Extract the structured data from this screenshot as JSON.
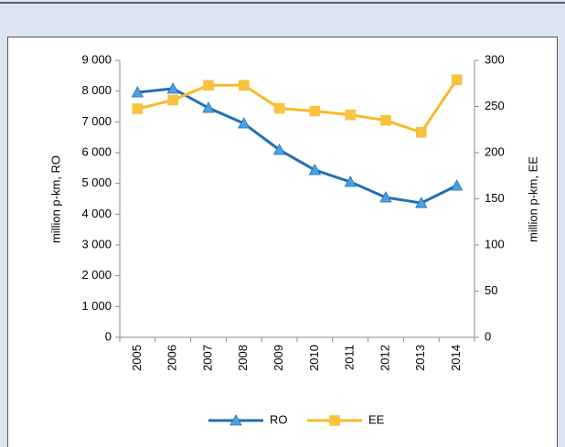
{
  "chart_data": {
    "type": "line",
    "categories": [
      "2005",
      "2006",
      "2007",
      "2008",
      "2009",
      "2010",
      "2011",
      "2012",
      "2013",
      "2014"
    ],
    "series": [
      {
        "name": "RO",
        "color": "#1f6fb5",
        "marker_color": "#4fa0de",
        "marker": "triangle",
        "values": [
          7960,
          8080,
          7455,
          6950,
          6090,
          5435,
          5050,
          4545,
          4365,
          4930
        ]
      },
      {
        "name": "EE",
        "color": "#f9b92a",
        "marker_color": "#f9c33f",
        "marker": "square",
        "axis": "y2",
        "values": [
          247.5,
          257,
          273,
          273,
          248,
          245,
          241,
          235,
          222,
          279
        ]
      }
    ],
    "ylabel": "million p-km, RO",
    "y2label": "million p-km, EE",
    "ylim": [
      0,
      9000
    ],
    "yticks": [
      0,
      {
        "value": 1000,
        "label": "1 000"
      },
      {
        "value": 2000,
        "label": "2 000"
      },
      {
        "value": 3000,
        "label": "3 000"
      },
      {
        "value": 4000,
        "label": "4 000"
      },
      {
        "value": 5000,
        "label": "5 000"
      },
      {
        "value": 6000,
        "label": "6 000"
      },
      {
        "value": 7000,
        "label": "7 000"
      },
      {
        "value": 8000,
        "label": "8 000"
      },
      {
        "value": 9000,
        "label": "9 000"
      }
    ],
    "y2lim": [
      0,
      300
    ],
    "y2ticks": [
      0,
      50,
      100,
      150,
      200,
      250,
      300
    ],
    "grid": false,
    "legend": "bottom"
  }
}
